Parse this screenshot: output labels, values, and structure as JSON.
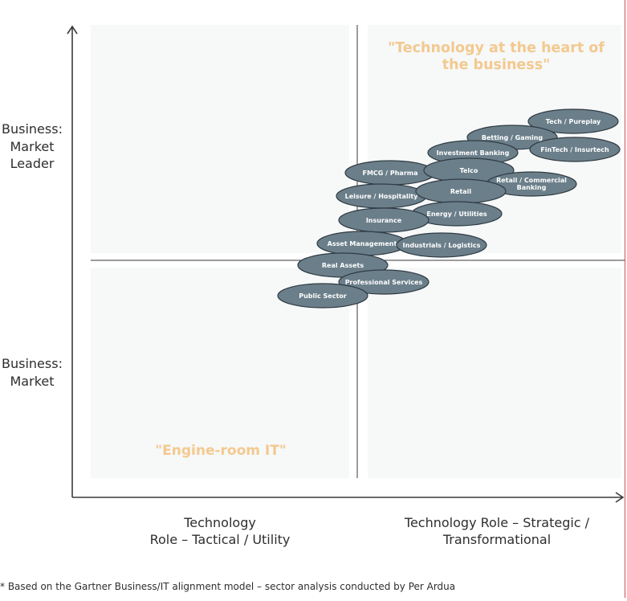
{
  "y_axis": {
    "top_label": [
      "Business:",
      "Market",
      "Leader"
    ],
    "bottom_label": [
      "Business:",
      "Market"
    ]
  },
  "x_axis": {
    "left_label": [
      "Technology",
      "Role – Tactical / Utility"
    ],
    "right_label": [
      "Technology Role – Strategic /",
      "Transformational"
    ]
  },
  "quadrants": {
    "top_right_quote": [
      "\"Technology at the heart of",
      "the business\""
    ],
    "bottom_left_quote": "\"Engine-room IT\""
  },
  "footnote": "* Based on the Gartner Business/IT alignment model – sector analysis conducted by Per Ardua",
  "colors": {
    "quadrant_fill": "#f7f8f8",
    "bubble_fill": "#6b7f8a",
    "bubble_stroke": "#2f3b43",
    "quote_color": "#f3c98f",
    "axis_color": "#3a3a3a"
  },
  "sectors": [
    "Tech / Pureplay",
    "Betting / Gaming",
    "FinTech / Insurtech",
    "Investment Banking",
    "FMCG / Pharma",
    "Telco",
    "Retail / Commercial Banking",
    "Leisure / Hospitality",
    "Retail",
    "Energy / Utilities",
    "Insurance",
    "Asset Management",
    "Industrials / Logistics",
    "Real Assets",
    "Professional Services",
    "Public Sector"
  ]
}
